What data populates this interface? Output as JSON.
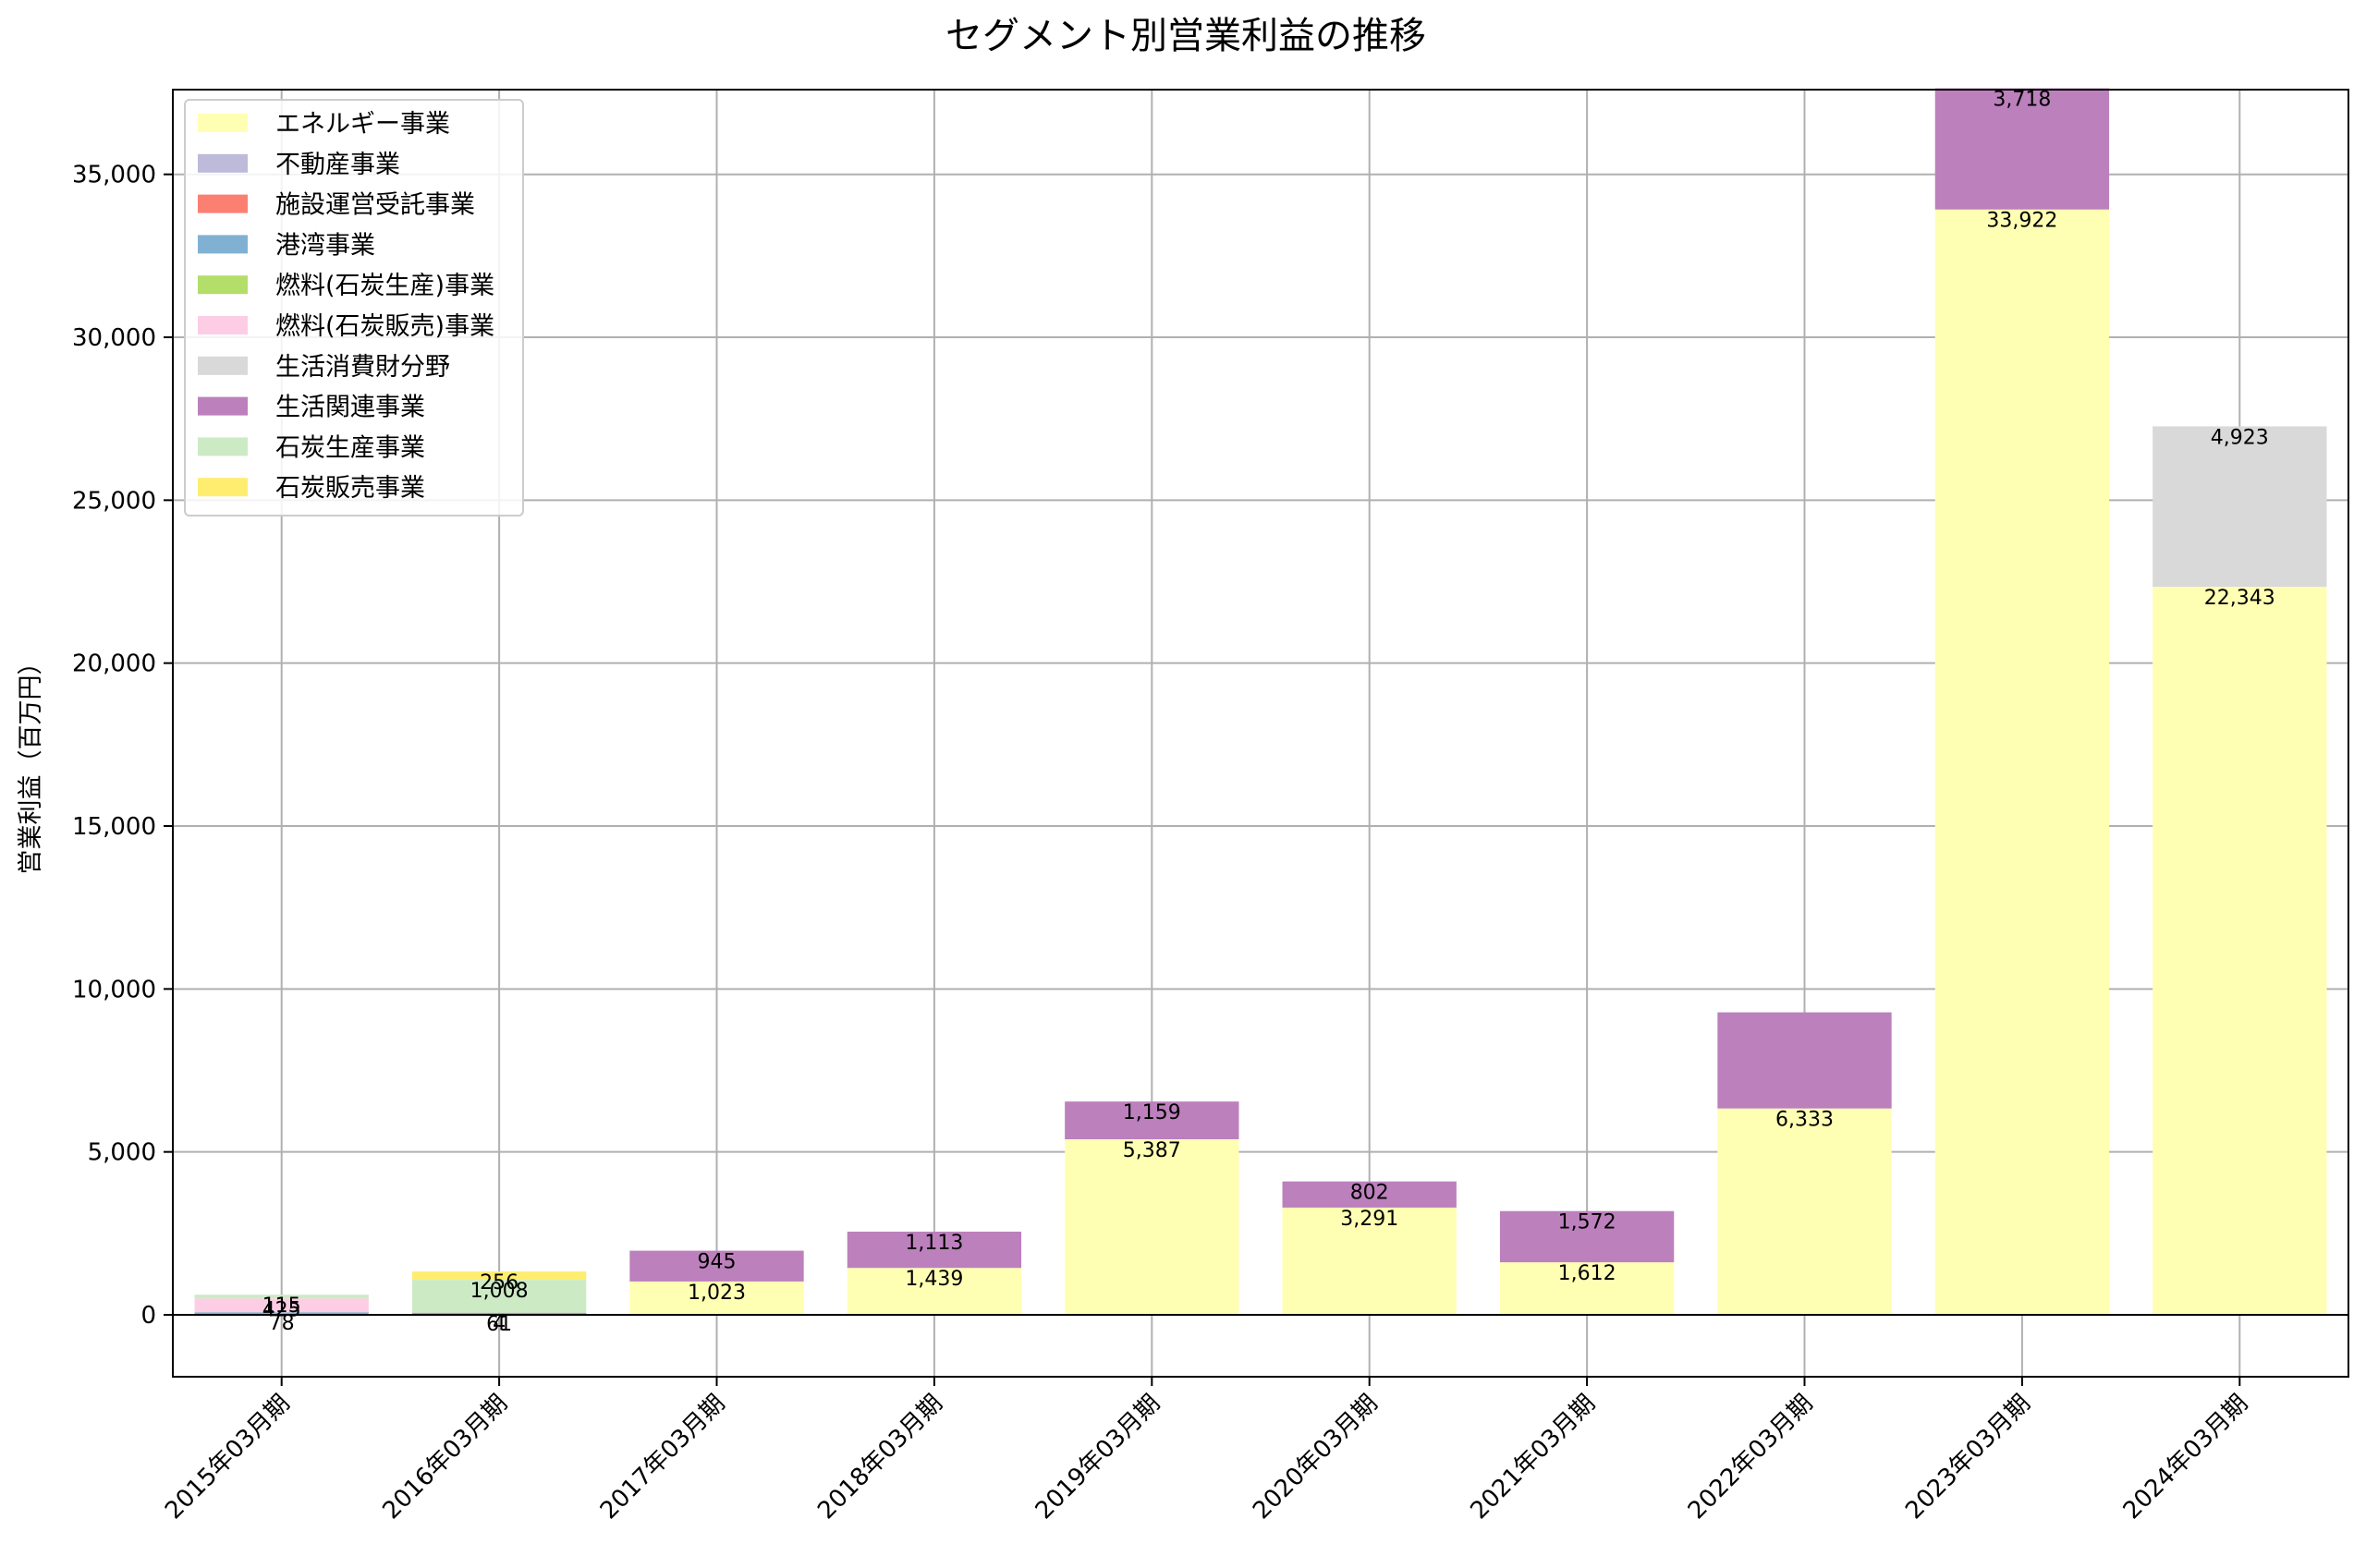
{
  "chart_data": {
    "type": "bar",
    "stacked": true,
    "title": "セグメント別営業利益の推移",
    "xlabel": "",
    "ylabel": "営業利益（百万円）",
    "ylim": [
      -1900,
      37600
    ],
    "yticks": [
      0,
      5000,
      10000,
      15000,
      20000,
      25000,
      30000,
      35000
    ],
    "ytick_labels": [
      "0",
      "5,000",
      "10,000",
      "15,000",
      "20,000",
      "25,000",
      "30,000",
      "35,000"
    ],
    "grid": true,
    "legend_position": "top-left",
    "categories": [
      "2015年03月期",
      "2016年03月期",
      "2017年03月期",
      "2018年03月期",
      "2019年03月期",
      "2020年03月期",
      "2021年03月期",
      "2022年03月期",
      "2023年03月期",
      "2024年03月期"
    ],
    "series": [
      {
        "name": "エネルギー事業",
        "color": "#ffffb3",
        "values": [
          0,
          0,
          1023,
          1439,
          5387,
          3291,
          1612,
          6333,
          33922,
          22343
        ]
      },
      {
        "name": "不動産事業",
        "color": "#bebada",
        "values": [
          0,
          0,
          0,
          0,
          0,
          0,
          0,
          0,
          0,
          0
        ]
      },
      {
        "name": "施設運営受託事業",
        "color": "#fb8072",
        "values": [
          0,
          61,
          0,
          0,
          0,
          0,
          0,
          0,
          0,
          0
        ]
      },
      {
        "name": "港湾事業",
        "color": "#80b1d3",
        "values": [
          78,
          4,
          0,
          0,
          0,
          0,
          0,
          0,
          0,
          0
        ]
      },
      {
        "name": "燃料(石炭生産)事業",
        "color": "#b3de69",
        "values": [
          0,
          0,
          0,
          0,
          0,
          0,
          0,
          0,
          0,
          0
        ]
      },
      {
        "name": "燃料(石炭販売)事業",
        "color": "#fccde5",
        "values": [
          425,
          0,
          0,
          0,
          0,
          0,
          0,
          0,
          0,
          0
        ]
      },
      {
        "name": "生活消費財分野",
        "color": "#d9d9d9",
        "values": [
          0,
          0,
          0,
          0,
          0,
          0,
          0,
          0,
          0,
          4923
        ]
      },
      {
        "name": "生活関連事業",
        "color": "#bc80bd",
        "values": [
          0,
          0,
          945,
          1113,
          1159,
          802,
          1572,
          2950,
          3718,
          0
        ]
      },
      {
        "name": "石炭生産事業",
        "color": "#ccebc5",
        "values": [
          115,
          1008,
          0,
          0,
          0,
          0,
          0,
          0,
          0,
          0
        ]
      },
      {
        "name": "石炭販売事業",
        "color": "#ffed6f",
        "values": [
          0,
          256,
          0,
          0,
          0,
          0,
          0,
          0,
          0,
          0
        ]
      }
    ],
    "data_labels": [
      {
        "category": 0,
        "series": 3,
        "text": "78"
      },
      {
        "category": 0,
        "series": 5,
        "text": "425"
      },
      {
        "category": 0,
        "series": 8,
        "text": "115"
      },
      {
        "category": 1,
        "series": 2,
        "text": "61"
      },
      {
        "category": 1,
        "series": 3,
        "text": "4"
      },
      {
        "category": 1,
        "series": 8,
        "text": "1,008"
      },
      {
        "category": 1,
        "series": 9,
        "text": "256"
      },
      {
        "category": 2,
        "series": 0,
        "text": "1,023"
      },
      {
        "category": 2,
        "series": 7,
        "text": "945"
      },
      {
        "category": 3,
        "series": 0,
        "text": "1,439"
      },
      {
        "category": 3,
        "series": 7,
        "text": "1,113"
      },
      {
        "category": 4,
        "series": 0,
        "text": "5,387"
      },
      {
        "category": 4,
        "series": 7,
        "text": "1,159"
      },
      {
        "category": 5,
        "series": 0,
        "text": "3,291"
      },
      {
        "category": 5,
        "series": 7,
        "text": "802"
      },
      {
        "category": 6,
        "series": 0,
        "text": "1,612"
      },
      {
        "category": 6,
        "series": 7,
        "text": "1,572"
      },
      {
        "category": 7,
        "series": 0,
        "text": "6,333"
      },
      {
        "category": 8,
        "series": 0,
        "text": "33,922"
      },
      {
        "category": 8,
        "series": 7,
        "text": "3,718"
      },
      {
        "category": 9,
        "series": 0,
        "text": "22,343"
      },
      {
        "category": 9,
        "series": 6,
        "text": "4,923"
      }
    ]
  }
}
